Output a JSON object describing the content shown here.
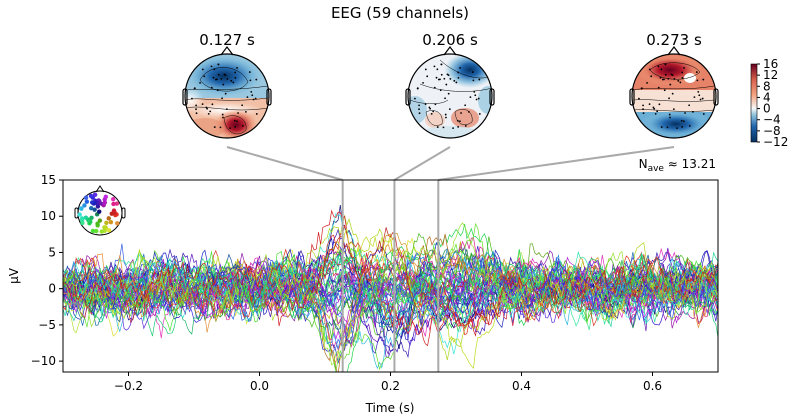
{
  "title": "EEG (59 channels)",
  "topomaps": [
    {
      "label": "0.127 s",
      "time": 0.127
    },
    {
      "label": "0.206 s",
      "time": 0.206
    },
    {
      "label": "0.273 s",
      "time": 0.273
    }
  ],
  "colorbar": {
    "ticks": [
      "16",
      "12",
      "8",
      "4",
      "0",
      "−4",
      "−8",
      "−12"
    ],
    "tick_values": [
      16,
      12,
      8,
      4,
      0,
      -4,
      -8,
      -12
    ],
    "range": [
      -12,
      16
    ],
    "colormap": "RdBu_r"
  },
  "nave_label": {
    "prefix": "N",
    "sub": "ave",
    "suffix": " ≈ 13.21"
  },
  "chart_data": {
    "type": "line",
    "title": "EEG (59 channels)",
    "xlabel": "Time (s)",
    "ylabel": "µV",
    "xlim": [
      -0.3,
      0.7
    ],
    "ylim": [
      -11.5,
      15
    ],
    "xticks": [
      -0.2,
      0.0,
      0.2,
      0.4,
      0.6
    ],
    "xtick_labels": [
      "−0.2",
      "0.0",
      "0.2",
      "0.4",
      "0.6"
    ],
    "yticks": [
      15,
      10,
      5,
      0,
      -5,
      -10
    ],
    "ytick_labels": [
      "15",
      "10",
      "5",
      "0",
      "−5",
      "−10"
    ],
    "n_channels": 59,
    "vlines": [
      0.127,
      0.206,
      0.273
    ],
    "grid": false,
    "legend": "sensor-position inset top-left",
    "colors": {
      "topo_line": "#aaaaaa",
      "red": "#b2182b",
      "blue": "#2166ac"
    }
  }
}
